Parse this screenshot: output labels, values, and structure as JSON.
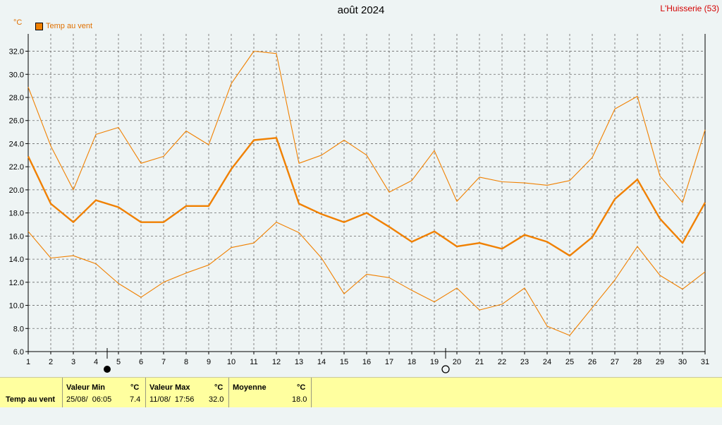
{
  "title": "août 2024",
  "station": "L'Huisserie (53)",
  "unit": "°C",
  "legend_label": "Temp au vent",
  "chart_data": {
    "type": "line",
    "title": "août 2024",
    "ylabel": "°C",
    "ylim": [
      6.0,
      33.5
    ],
    "yticks": [
      "6.0",
      "8.0",
      "10.0",
      "12.0",
      "14.0",
      "16.0",
      "18.0",
      "20.0",
      "22.0",
      "24.0",
      "26.0",
      "28.0",
      "30.0",
      "32.0"
    ],
    "x": [
      1,
      2,
      3,
      4,
      5,
      6,
      7,
      8,
      9,
      10,
      11,
      12,
      13,
      14,
      15,
      16,
      17,
      18,
      19,
      20,
      21,
      22,
      23,
      24,
      25,
      26,
      27,
      28,
      29,
      30,
      31
    ],
    "grid": true,
    "legend": "top-left",
    "series": [
      {
        "name": "Temp au vent",
        "role": "max",
        "color": "#f08000",
        "values": [
          28.9,
          23.8,
          20.0,
          24.8,
          25.4,
          22.3,
          22.9,
          25.1,
          23.9,
          29.2,
          32.0,
          31.8,
          22.3,
          23.0,
          24.3,
          23.0,
          19.8,
          20.8,
          23.4,
          19.0,
          21.1,
          20.7,
          20.6,
          20.4,
          20.8,
          22.8,
          27.0,
          28.1,
          21.2,
          18.9,
          25.2
        ]
      },
      {
        "name": "Temp au vent",
        "role": "mean",
        "color": "#f08000",
        "values": [
          22.9,
          18.8,
          17.2,
          19.1,
          18.5,
          17.2,
          17.2,
          18.6,
          18.6,
          21.8,
          24.3,
          24.5,
          18.8,
          17.9,
          17.2,
          18.0,
          16.8,
          15.5,
          16.4,
          15.1,
          15.4,
          14.9,
          16.1,
          15.5,
          14.3,
          15.9,
          19.2,
          20.9,
          17.5,
          15.4,
          18.9
        ]
      },
      {
        "name": "Temp au vent",
        "role": "min",
        "color": "#f08000",
        "values": [
          16.4,
          14.1,
          14.3,
          13.6,
          11.9,
          10.7,
          12.0,
          12.8,
          13.5,
          15.0,
          15.4,
          17.2,
          16.3,
          14.1,
          11.0,
          12.7,
          12.4,
          11.3,
          10.3,
          11.5,
          9.6,
          10.1,
          11.5,
          8.2,
          7.4,
          9.8,
          12.2,
          15.1,
          12.6,
          11.4,
          12.9
        ]
      }
    ],
    "moon_markers": [
      {
        "after_day": 4,
        "phase": "new-moon"
      },
      {
        "after_day": 19,
        "phase": "full-moon"
      }
    ]
  },
  "footer": {
    "row_label": "Temp au vent",
    "min_header": "Valeur Min",
    "min_unit": "°C",
    "min_date": "25/08/  06:05",
    "min_value": "7.4",
    "max_header": "Valeur Max",
    "max_unit": "°C",
    "max_date": "11/08/  17:56",
    "max_value": "32.0",
    "mean_header": "Moyenne",
    "mean_unit": "°C",
    "mean_value": "18.0"
  }
}
